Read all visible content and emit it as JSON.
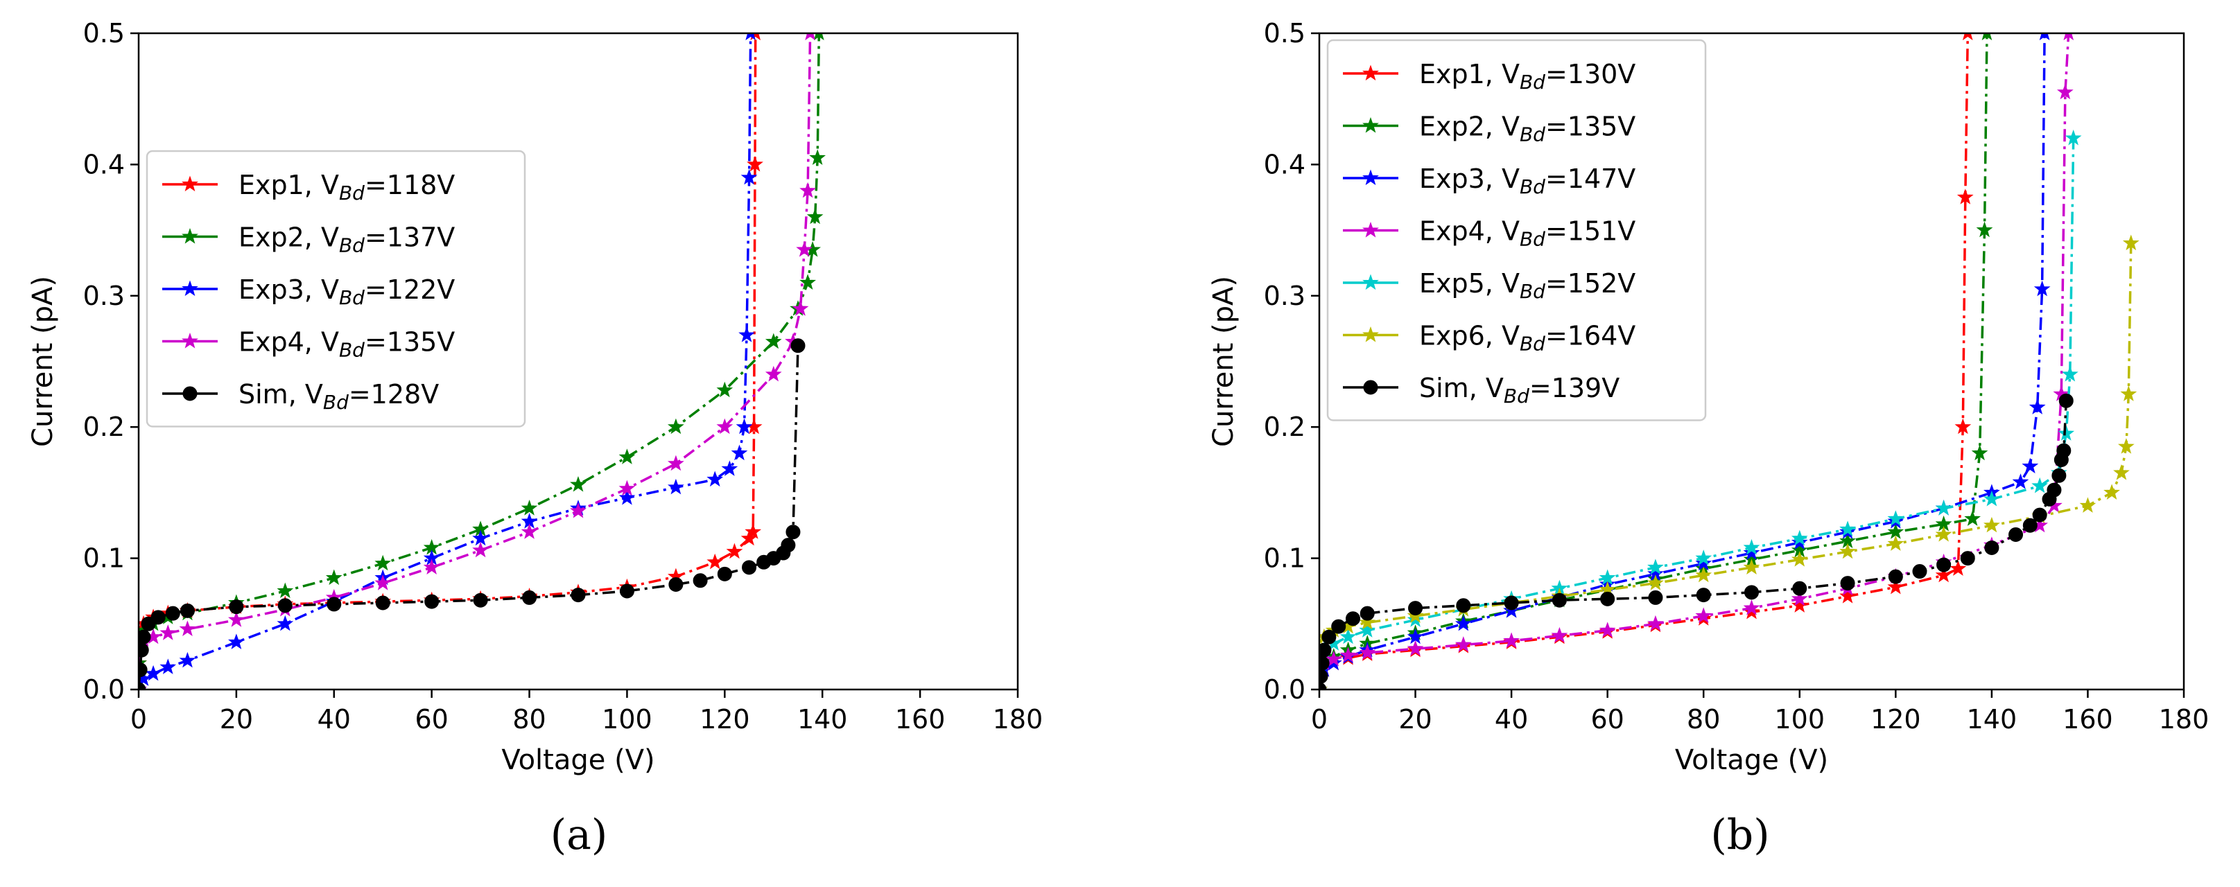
{
  "figure": {
    "panels": [
      {
        "label": "(a)"
      },
      {
        "label": "(b)"
      }
    ]
  },
  "chart_data": [
    {
      "type": "line",
      "panel": "a",
      "xlabel": "Voltage (V)",
      "ylabel": "Current (pA)",
      "xlim": [
        0,
        180
      ],
      "ylim": [
        0,
        0.5
      ],
      "xticks": [
        0,
        20,
        40,
        60,
        80,
        100,
        120,
        140,
        160,
        180
      ],
      "yticks": [
        0.0,
        0.1,
        0.2,
        0.3,
        0.4,
        0.5
      ],
      "legend_position": "center-left",
      "series": [
        {
          "name": "Exp1",
          "vbd": "118",
          "color": "#ff0000",
          "marker": "star",
          "style": "dashdot",
          "x": [
            0,
            0.5,
            1,
            3,
            6,
            10,
            20,
            30,
            40,
            50,
            60,
            70,
            80,
            90,
            100,
            110,
            118,
            122,
            125,
            125.8,
            126,
            126.2,
            126.3
          ],
          "y": [
            0.02,
            0.045,
            0.05,
            0.055,
            0.058,
            0.06,
            0.063,
            0.065,
            0.066,
            0.067,
            0.068,
            0.069,
            0.071,
            0.074,
            0.078,
            0.086,
            0.097,
            0.105,
            0.115,
            0.12,
            0.2,
            0.4,
            0.5
          ]
        },
        {
          "name": "Exp2",
          "vbd": "137",
          "color": "#008000",
          "marker": "star",
          "style": "dashdot",
          "x": [
            0,
            0.5,
            1,
            3,
            6,
            10,
            20,
            30,
            40,
            50,
            60,
            70,
            80,
            90,
            100,
            110,
            120,
            130,
            135,
            137,
            138,
            138.5,
            139,
            139.3
          ],
          "y": [
            0.02,
            0.04,
            0.045,
            0.05,
            0.055,
            0.058,
            0.066,
            0.075,
            0.085,
            0.096,
            0.108,
            0.122,
            0.138,
            0.156,
            0.177,
            0.2,
            0.228,
            0.265,
            0.29,
            0.31,
            0.335,
            0.36,
            0.405,
            0.5
          ]
        },
        {
          "name": "Exp3",
          "vbd": "122",
          "color": "#0000ff",
          "marker": "star",
          "style": "dashdot",
          "x": [
            0,
            1,
            3,
            6,
            10,
            20,
            30,
            40,
            50,
            60,
            70,
            80,
            90,
            100,
            110,
            118,
            121,
            123,
            124,
            124.5,
            125,
            125.3
          ],
          "y": [
            0.0,
            0.008,
            0.012,
            0.017,
            0.022,
            0.036,
            0.05,
            0.067,
            0.085,
            0.1,
            0.115,
            0.128,
            0.138,
            0.146,
            0.154,
            0.16,
            0.168,
            0.18,
            0.2,
            0.27,
            0.39,
            0.5
          ]
        },
        {
          "name": "Exp4",
          "vbd": "135",
          "color": "#cc00cc",
          "marker": "star",
          "style": "dashdot",
          "x": [
            0,
            0.5,
            1,
            3,
            6,
            10,
            20,
            30,
            40,
            50,
            60,
            70,
            80,
            90,
            100,
            110,
            120,
            130,
            134,
            135.5,
            136.3,
            137,
            137.5
          ],
          "y": [
            0.0,
            0.035,
            0.038,
            0.04,
            0.043,
            0.046,
            0.053,
            0.061,
            0.07,
            0.081,
            0.093,
            0.106,
            0.12,
            0.136,
            0.153,
            0.172,
            0.2,
            0.24,
            0.265,
            0.29,
            0.335,
            0.38,
            0.5
          ]
        },
        {
          "name": "Sim",
          "vbd": "128",
          "color": "#000000",
          "marker": "circle",
          "style": "dashdot",
          "x": [
            0,
            0.3,
            0.6,
            1,
            2,
            4,
            7,
            10,
            20,
            30,
            40,
            50,
            60,
            70,
            80,
            90,
            100,
            110,
            115,
            120,
            125,
            128,
            130,
            132,
            133,
            134,
            135
          ],
          "y": [
            0.0,
            0.015,
            0.03,
            0.04,
            0.05,
            0.055,
            0.058,
            0.06,
            0.063,
            0.064,
            0.065,
            0.066,
            0.067,
            0.068,
            0.07,
            0.072,
            0.075,
            0.08,
            0.083,
            0.088,
            0.093,
            0.097,
            0.1,
            0.104,
            0.11,
            0.12,
            0.262
          ]
        }
      ]
    },
    {
      "type": "line",
      "panel": "b",
      "xlabel": "Voltage (V)",
      "ylabel": "Current (pA)",
      "xlim": [
        0,
        180
      ],
      "ylim": [
        0,
        0.5
      ],
      "xticks": [
        0,
        20,
        40,
        60,
        80,
        100,
        120,
        140,
        160,
        180
      ],
      "yticks": [
        0.0,
        0.1,
        0.2,
        0.3,
        0.4,
        0.5
      ],
      "legend_position": "top-left",
      "series": [
        {
          "name": "Exp1",
          "vbd": "130",
          "color": "#ff0000",
          "marker": "star",
          "style": "dashdot",
          "x": [
            0,
            1,
            3,
            6,
            10,
            20,
            30,
            40,
            50,
            60,
            70,
            80,
            90,
            100,
            110,
            120,
            130,
            133,
            134,
            134.5,
            135
          ],
          "y": [
            0.0,
            0.015,
            0.02,
            0.024,
            0.027,
            0.03,
            0.033,
            0.036,
            0.04,
            0.044,
            0.049,
            0.054,
            0.059,
            0.064,
            0.071,
            0.078,
            0.087,
            0.092,
            0.2,
            0.375,
            0.5
          ]
        },
        {
          "name": "Exp2",
          "vbd": "135",
          "color": "#008000",
          "marker": "star",
          "style": "dashdot",
          "x": [
            0,
            1,
            3,
            6,
            10,
            20,
            30,
            40,
            50,
            60,
            70,
            80,
            90,
            100,
            110,
            120,
            130,
            136,
            137.5,
            138.5,
            139
          ],
          "y": [
            0.0,
            0.02,
            0.025,
            0.03,
            0.035,
            0.043,
            0.052,
            0.06,
            0.068,
            0.076,
            0.084,
            0.092,
            0.099,
            0.106,
            0.113,
            0.12,
            0.126,
            0.13,
            0.18,
            0.35,
            0.5
          ]
        },
        {
          "name": "Exp3",
          "vbd": "147",
          "color": "#0000ff",
          "marker": "star",
          "style": "dashdot",
          "x": [
            0,
            1,
            3,
            6,
            10,
            20,
            30,
            40,
            50,
            60,
            70,
            80,
            90,
            100,
            110,
            120,
            130,
            140,
            146,
            148,
            149.5,
            150.5,
            151
          ],
          "y": [
            0.0,
            0.015,
            0.02,
            0.025,
            0.03,
            0.04,
            0.05,
            0.06,
            0.07,
            0.08,
            0.088,
            0.096,
            0.104,
            0.112,
            0.12,
            0.128,
            0.138,
            0.15,
            0.158,
            0.17,
            0.215,
            0.305,
            0.5
          ]
        },
        {
          "name": "Exp4",
          "vbd": "151",
          "color": "#cc00cc",
          "marker": "star",
          "style": "dashdot",
          "x": [
            0,
            1,
            3,
            6,
            10,
            20,
            30,
            40,
            50,
            60,
            70,
            80,
            90,
            100,
            110,
            120,
            130,
            140,
            150,
            153,
            154.5,
            155.3,
            156
          ],
          "y": [
            0.0,
            0.02,
            0.023,
            0.026,
            0.028,
            0.031,
            0.034,
            0.037,
            0.041,
            0.045,
            0.05,
            0.056,
            0.062,
            0.069,
            0.077,
            0.086,
            0.097,
            0.11,
            0.125,
            0.14,
            0.225,
            0.455,
            0.5
          ]
        },
        {
          "name": "Exp5",
          "vbd": "152",
          "color": "#00cccc",
          "marker": "star",
          "style": "dashdot",
          "x": [
            0,
            0.5,
            1,
            3,
            6,
            10,
            20,
            30,
            40,
            50,
            60,
            70,
            80,
            90,
            100,
            110,
            120,
            130,
            140,
            150,
            154,
            155.5,
            156.3,
            157
          ],
          "y": [
            0.0,
            0.02,
            0.03,
            0.035,
            0.04,
            0.045,
            0.053,
            0.061,
            0.069,
            0.077,
            0.085,
            0.093,
            0.1,
            0.108,
            0.115,
            0.122,
            0.13,
            0.138,
            0.145,
            0.155,
            0.165,
            0.195,
            0.24,
            0.42
          ]
        },
        {
          "name": "Exp6",
          "vbd": "164",
          "color": "#bbbb00",
          "marker": "star",
          "style": "dashdot",
          "x": [
            0,
            0.5,
            1,
            3,
            6,
            10,
            20,
            30,
            40,
            50,
            60,
            70,
            80,
            90,
            100,
            110,
            120,
            130,
            140,
            150,
            160,
            165,
            167,
            168,
            168.5,
            169
          ],
          "y": [
            0.0,
            0.03,
            0.04,
            0.045,
            0.048,
            0.051,
            0.056,
            0.061,
            0.066,
            0.071,
            0.076,
            0.081,
            0.087,
            0.093,
            0.099,
            0.105,
            0.111,
            0.118,
            0.125,
            0.132,
            0.14,
            0.15,
            0.165,
            0.185,
            0.225,
            0.34
          ]
        },
        {
          "name": "Sim",
          "vbd": "139",
          "color": "#000000",
          "marker": "circle",
          "style": "dashdot",
          "x": [
            0,
            0.3,
            0.6,
            1,
            2,
            4,
            7,
            10,
            20,
            30,
            40,
            50,
            60,
            70,
            80,
            90,
            100,
            110,
            120,
            125,
            130,
            135,
            140,
            145,
            148,
            150,
            152,
            153,
            154,
            154.5,
            155,
            155.5
          ],
          "y": [
            0.0,
            0.01,
            0.02,
            0.03,
            0.04,
            0.048,
            0.054,
            0.058,
            0.062,
            0.064,
            0.066,
            0.068,
            0.069,
            0.07,
            0.072,
            0.074,
            0.077,
            0.081,
            0.086,
            0.09,
            0.095,
            0.1,
            0.108,
            0.118,
            0.125,
            0.133,
            0.145,
            0.152,
            0.163,
            0.175,
            0.182,
            0.22
          ]
        }
      ]
    }
  ]
}
